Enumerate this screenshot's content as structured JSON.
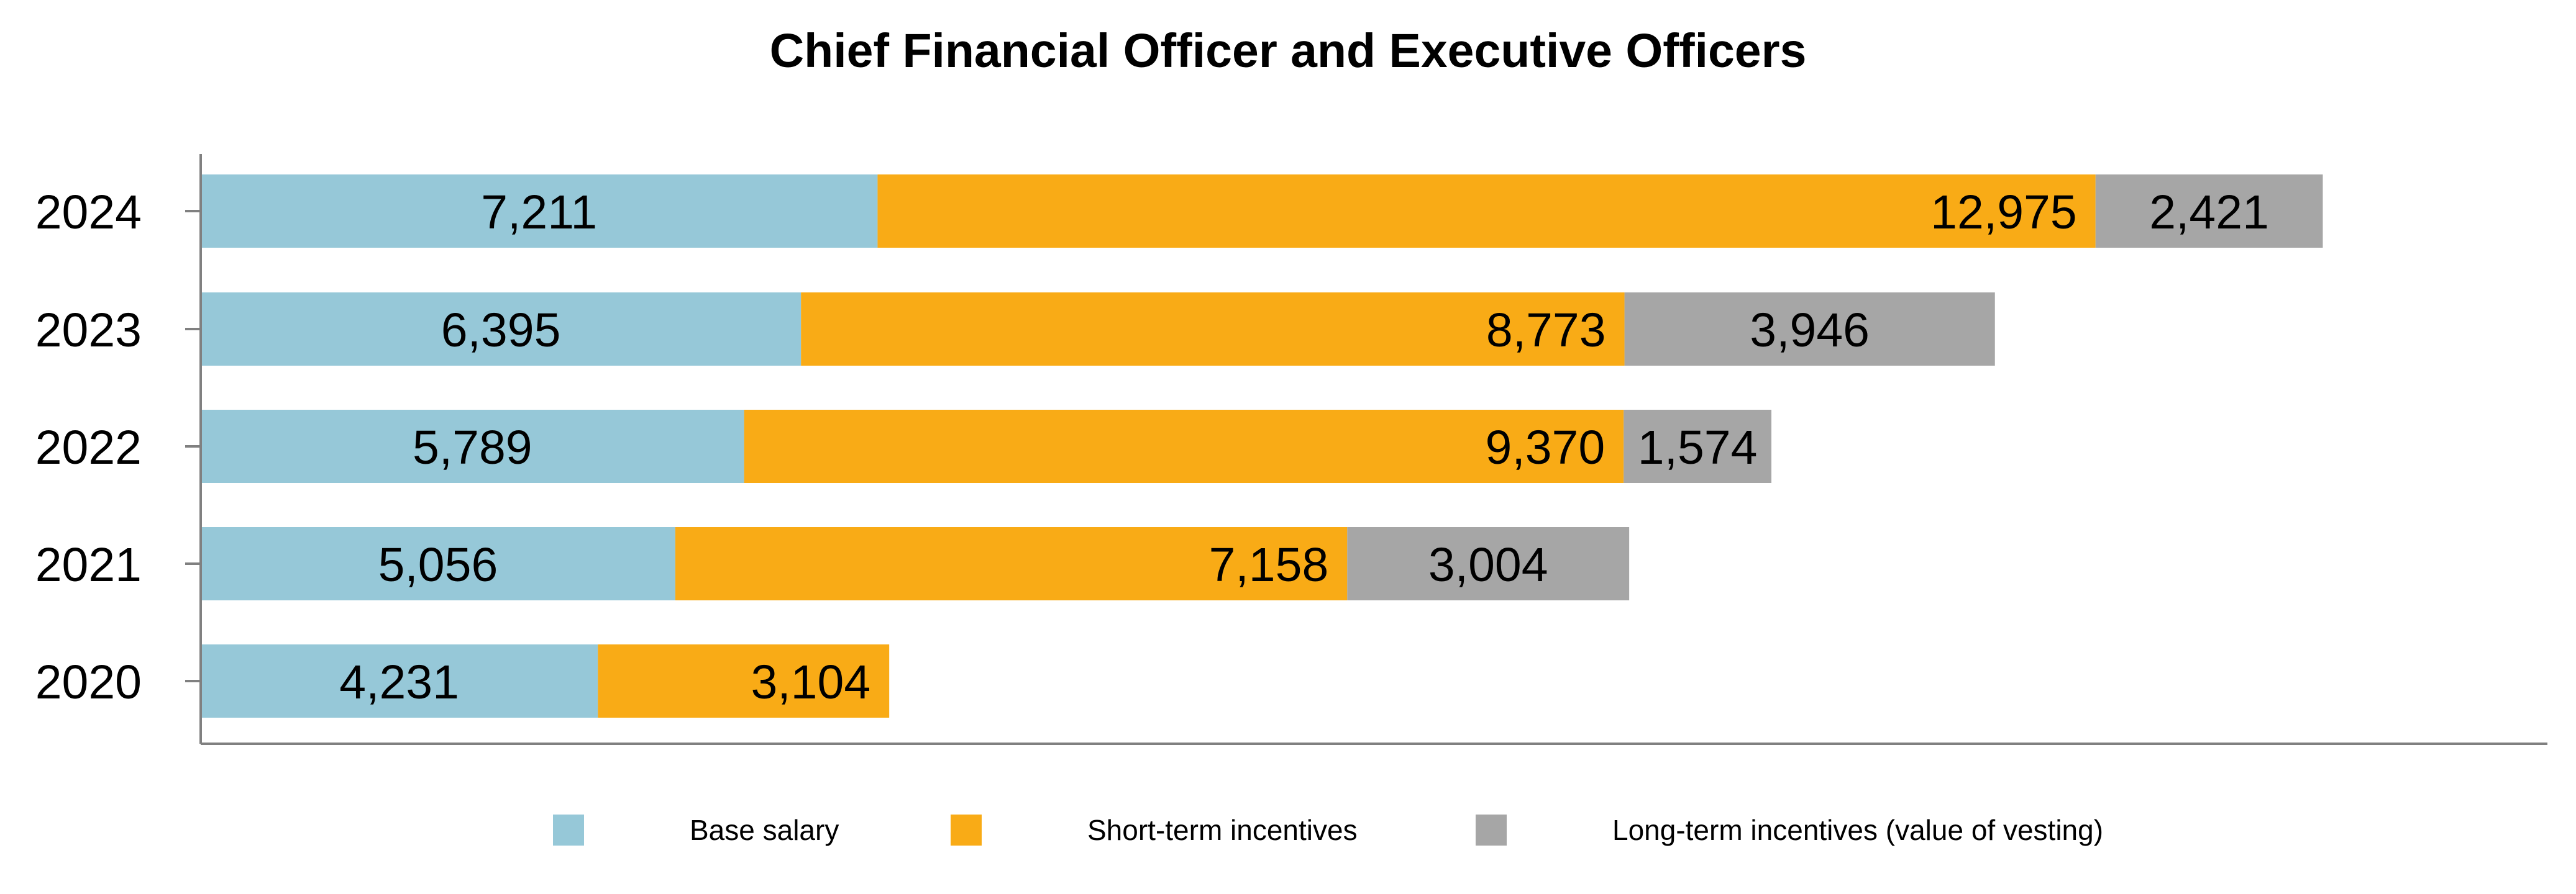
{
  "chart_data": {
    "type": "bar",
    "orientation": "horizontal",
    "stacked": true,
    "title": "Chief Financial Officer and Executive Officers",
    "categories": [
      "2024",
      "2023",
      "2022",
      "2021",
      "2020"
    ],
    "series": [
      {
        "name": "Base salary",
        "color": "#96C8D8",
        "values": [
          7211,
          6395,
          5789,
          5056,
          4231
        ]
      },
      {
        "name": "Short-term incentives",
        "color": "#F9AB16",
        "values": [
          12975,
          8773,
          9370,
          7158,
          3104
        ]
      },
      {
        "name": "Long-term incentives (value of vesting)",
        "color": "#A6A6A6",
        "values": [
          2421,
          3946,
          1574,
          3004,
          null
        ]
      }
    ],
    "value_labels": [
      [
        "7,211",
        "6,395",
        "5,789",
        "5,056",
        "4,231"
      ],
      [
        "12,975",
        "8,773",
        "9,370",
        "7,158",
        "3,104"
      ],
      [
        "2,421",
        "3,946",
        "1,574",
        "3,004",
        ""
      ]
    ],
    "xlim": [
      0,
      25000
    ],
    "xlabel": "",
    "ylabel": "",
    "grid": false,
    "legend_position": "bottom",
    "axis_color": "#808080"
  }
}
